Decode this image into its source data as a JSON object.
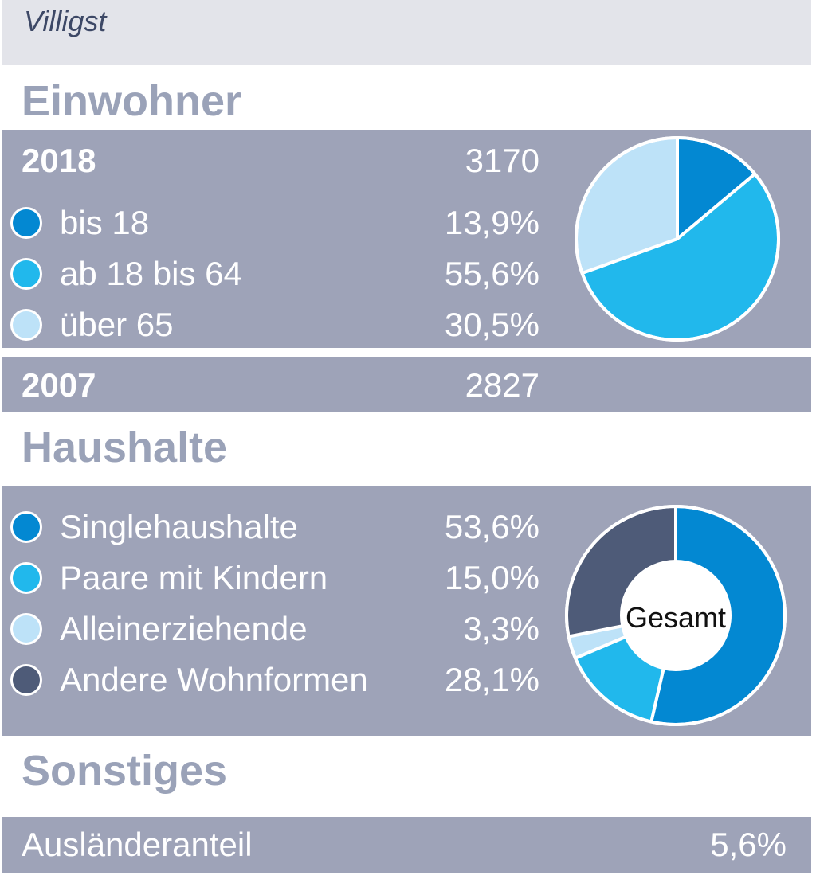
{
  "header": {
    "place": "Villigst"
  },
  "sections": {
    "einwohner": "Einwohner",
    "haushalte": "Haushalte",
    "sonstiges": "Sonstiges"
  },
  "einwohner": {
    "year_current": "2018",
    "total_current": "3170",
    "year_previous": "2007",
    "total_previous": "2827",
    "groups": [
      {
        "label": "bis 18",
        "value": "13,9%",
        "color": "#0388d2"
      },
      {
        "label": "ab 18 bis 64",
        "value": "55,6%",
        "color": "#21b8ec"
      },
      {
        "label": "über 65",
        "value": "30,5%",
        "color": "#bde2f8"
      }
    ]
  },
  "haushalte": {
    "center_label": "Gesamt",
    "groups": [
      {
        "label": "Singlehaushalte",
        "value": "53,6%",
        "color": "#0388d2"
      },
      {
        "label": "Paare mit Kindern",
        "value": "15,0%",
        "color": "#21b8ec"
      },
      {
        "label": "Alleinerziehende",
        "value": "3,3%",
        "color": "#bde2f8"
      },
      {
        "label": "Andere Wohnformen",
        "value": "28,1%",
        "color": "#4e5b78"
      }
    ]
  },
  "sonstiges": {
    "label": "Ausländeranteil",
    "value": "5,6%"
  },
  "chart_data": [
    {
      "type": "pie",
      "categories": [
        "bis 18",
        "ab 18 bis 64",
        "über 65"
      ],
      "values": [
        13.9,
        55.6,
        30.5
      ],
      "colors": [
        "#0388d2",
        "#21b8ec",
        "#bde2f8"
      ]
    },
    {
      "type": "donut",
      "categories": [
        "Singlehaushalte",
        "Paare mit Kindern",
        "Alleinerziehende",
        "Andere Wohnformen"
      ],
      "values": [
        53.6,
        15.0,
        3.3,
        28.1
      ],
      "colors": [
        "#0388d2",
        "#21b8ec",
        "#bde2f8",
        "#4e5b78"
      ],
      "center_label": "Gesamt"
    }
  ]
}
